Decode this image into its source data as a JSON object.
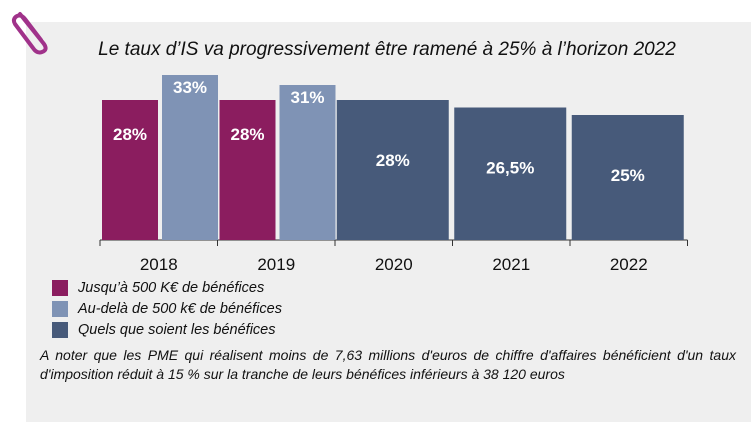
{
  "title": "Le taux d’IS va progressivement être ramené à 25% à l’horizon 2022",
  "icons": {
    "clip": "paperclip-icon"
  },
  "colors": {
    "purple": "#8b1d5f",
    "lightblue": "#7f93b5",
    "darkblue": "#475a7a"
  },
  "chart_data": {
    "type": "bar",
    "categories": [
      "2018",
      "2019",
      "2020",
      "2021",
      "2022"
    ],
    "series": [
      {
        "name": "Jusqu’à 500 K€ de bénéfices",
        "color": "#8b1d5f",
        "values": [
          28,
          28,
          null,
          null,
          null
        ],
        "labels": [
          "28%",
          "28%",
          null,
          null,
          null
        ]
      },
      {
        "name": "Au-delà de 500 k€ de bénéfices",
        "color": "#7f93b5",
        "values": [
          33,
          31,
          null,
          null,
          null
        ],
        "labels": [
          "33%",
          "31%",
          null,
          null,
          null
        ]
      },
      {
        "name": "Quels que soient les bénéfices",
        "color": "#475a7a",
        "values": [
          null,
          null,
          28,
          26.5,
          25
        ],
        "labels": [
          null,
          null,
          "28%",
          "26,5%",
          "25%"
        ]
      }
    ],
    "legend": "bottom-left",
    "grid": false
  },
  "legend": [
    {
      "label": "Jusqu’à 500 K€ de bénéfices",
      "color": "#8b1d5f"
    },
    {
      "label": "Au-delà de 500 k€ de bénéfices",
      "color": "#7f93b5"
    },
    {
      "label": "Quels que soient les bénéfices",
      "color": "#475a7a"
    }
  ],
  "note": "A noter que les PME qui réalisent moins de 7,63 millions d'euros de chiffre d'affaires bénéficient d'un taux d'imposition réduit à 15 % sur la tranche de leurs bénéfices inférieurs à 38 120 euros"
}
